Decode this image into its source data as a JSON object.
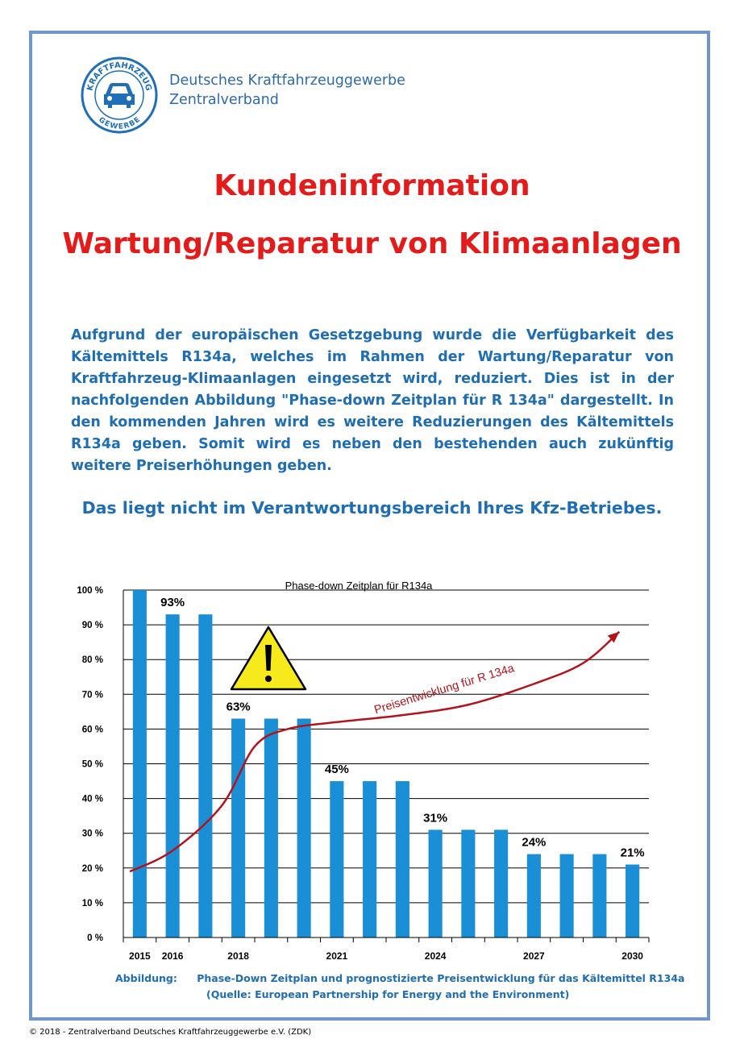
{
  "header": {
    "logo_text_top": "KRAFTFAHRZEUG",
    "logo_text_bottom": "GEWERBE",
    "org_line1": "Deutsches Kraftfahrzeuggewerbe",
    "org_line2": "Zentralverband"
  },
  "title": {
    "line1": "Kundeninformation",
    "line2": "Wartung/Reparatur von Klimaanlagen"
  },
  "body": {
    "paragraph": "Aufgrund der europäischen Gesetzgebung wurde die Verfügbarkeit des Kältemittels R134a, welches im Rahmen der Wartung/Reparatur von Kraftfahrzeug-Klimaanlagen eingesetzt wird, reduziert. Dies ist in der nachfolgenden Abbildung \"Phase-down Zeitplan für R 134a\" dargestellt. In den kommenden Jahren wird es weitere Reduzierungen des Kältemittels R134a geben. Somit wird es neben den bestehenden auch zukünftig weitere Preiserhöhungen geben.",
    "notice": "Das liegt nicht im Verantwortungsbereich Ihres Kfz-Betriebes."
  },
  "chart_data": {
    "type": "bar",
    "title": "Phase-down Zeitplan für R134a",
    "ylim": [
      0,
      100
    ],
    "yticks": [
      "0 %",
      "10 %",
      "20 %",
      "30 %",
      "40 %",
      "50 %",
      "60 %",
      "70 %",
      "80 %",
      "90 %",
      "100 %"
    ],
    "years": [
      2015,
      2016,
      2017,
      2018,
      2019,
      2020,
      2021,
      2022,
      2023,
      2024,
      2025,
      2026,
      2027,
      2028,
      2029,
      2030
    ],
    "xtick_labels": [
      "2015",
      "2016",
      "",
      "2018",
      "",
      "",
      "2021",
      "",
      "",
      "2024",
      "",
      "",
      "2027",
      "",
      "",
      "2030"
    ],
    "values": [
      100,
      93,
      93,
      63,
      63,
      63,
      45,
      45,
      45,
      31,
      31,
      31,
      24,
      24,
      24,
      21
    ],
    "data_labels": [
      {
        "index": 1,
        "text": "93%"
      },
      {
        "index": 3,
        "text": "63%"
      },
      {
        "index": 6,
        "text": "45%"
      },
      {
        "index": 9,
        "text": "31%"
      },
      {
        "index": 12,
        "text": "24%"
      },
      {
        "index": 15,
        "text": "21%"
      }
    ],
    "price_trend_label": "Preisentwicklung für R 134a",
    "price_trend": [
      [
        2014.7,
        19
      ],
      [
        2016,
        25
      ],
      [
        2017.5,
        38
      ],
      [
        2018.5,
        55
      ],
      [
        2019.5,
        60
      ],
      [
        2021,
        62
      ],
      [
        2023,
        64
      ],
      [
        2025,
        67
      ],
      [
        2027,
        73
      ],
      [
        2028.5,
        79
      ],
      [
        2029.6,
        88
      ]
    ],
    "warning_icon": "warning-triangle-icon",
    "colors": {
      "bars": "#1a8fd6",
      "trend": "#b3141c",
      "warning_fill": "#f6ea1c"
    },
    "grid": true
  },
  "caption": {
    "label": "Abbildung:",
    "text": "Phase-Down Zeitplan und prognostizierte Preisentwicklung für das Kältemittel R134a",
    "source": "(Quelle: European Partnership for Energy and the Environment)"
  },
  "footer": {
    "copyright": "© 2018 - Zentralverband Deutsches Kraftfahrzeuggewerbe e.V. (ZDK)"
  }
}
